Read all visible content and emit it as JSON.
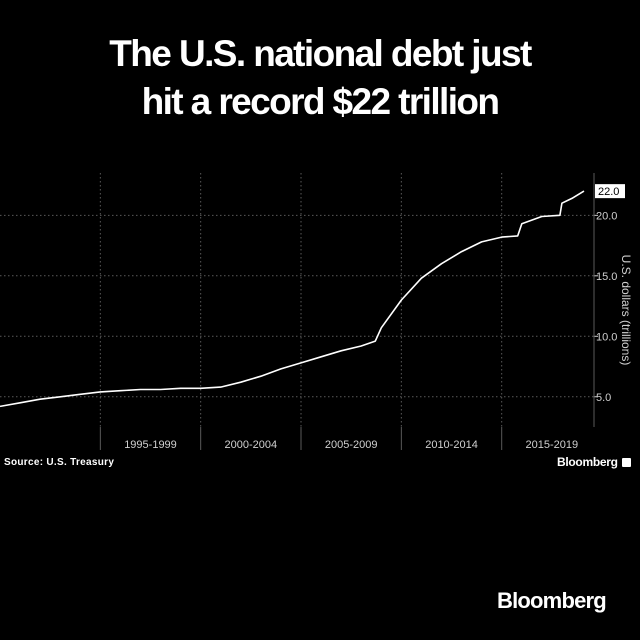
{
  "title": {
    "line1": "The U.S. national debt just",
    "line2": "hit a record $22 trillion"
  },
  "source": "Source: U.S. Treasury",
  "brand_small": "Bloomberg",
  "brand_large": "Bloomberg",
  "colors": {
    "background": "#000000",
    "line": "#ffffff",
    "grid": "#5a5a5a",
    "text": "#ffffff",
    "tick_text": "#d0d0d0"
  },
  "chart_data": {
    "type": "line",
    "title": "The U.S. national debt just hit a record $22 trillion",
    "xlabel": "",
    "ylabel": "U.S. dollars (trillions)",
    "ylim": [
      2.5,
      23.5
    ],
    "xlim": [
      1990,
      2019.6
    ],
    "grid": true,
    "legend": "none",
    "last_value_label": "22.0",
    "x_tick_labels": [
      {
        "label": "1995-1999",
        "center": 1997.5
      },
      {
        "label": "2000-2004",
        "center": 2002.5
      },
      {
        "label": "2005-2009",
        "center": 2007.5
      },
      {
        "label": "2010-2014",
        "center": 2012.5
      },
      {
        "label": "2015-2019",
        "center": 2017.5
      }
    ],
    "y_ticks": [
      {
        "value": 5,
        "label": "5.0"
      },
      {
        "value": 10,
        "label": "10.0"
      },
      {
        "value": 15,
        "label": "15.0"
      },
      {
        "value": 20,
        "label": "20.0"
      }
    ],
    "series": [
      {
        "x": [
          1990,
          1991,
          1992,
          1993,
          1994,
          1995,
          1996,
          1997,
          1998,
          1999,
          2000,
          2001,
          2002,
          2003,
          2004,
          2005,
          2006,
          2007,
          2008,
          2008.7,
          2009,
          2010,
          2011,
          2012,
          2013,
          2014,
          2015,
          2015.8,
          2016,
          2017,
          2017.9,
          2018,
          2018.5,
          2019.1
        ],
        "y": [
          4.2,
          4.5,
          4.8,
          5.0,
          5.2,
          5.4,
          5.5,
          5.6,
          5.6,
          5.7,
          5.7,
          5.8,
          6.2,
          6.7,
          7.3,
          7.8,
          8.3,
          8.8,
          9.2,
          9.6,
          10.7,
          13.0,
          14.8,
          16.0,
          17.0,
          17.8,
          18.2,
          18.3,
          19.3,
          19.9,
          20.0,
          21.0,
          21.4,
          22.0
        ]
      }
    ]
  }
}
